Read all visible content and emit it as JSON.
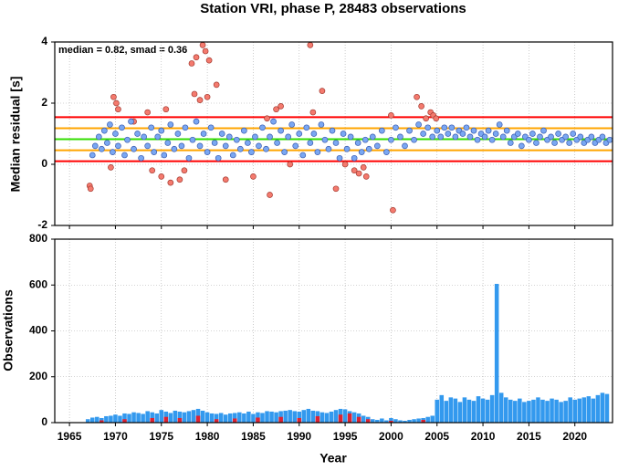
{
  "chart_data": [
    {
      "type": "scatter",
      "title": "Station VRI, phase P, 28483 observations",
      "annotation": "median = 0.82, smad = 0.36",
      "ylabel": "Median residual [s]",
      "xlim": [
        1963.4,
        2024.1
      ],
      "ylim": [
        -2,
        4
      ],
      "xticks": [
        1965,
        1970,
        1975,
        1980,
        1985,
        1990,
        1995,
        2000,
        2005,
        2010,
        2015,
        2020
      ],
      "yticks": [
        -2,
        0,
        2,
        4
      ],
      "grid": true,
      "hlines": [
        {
          "value": 1.54,
          "color": "#ff0000"
        },
        {
          "value": 0.1,
          "color": "#ff0000"
        },
        {
          "value": 1.18,
          "color": "#ffa500"
        },
        {
          "value": 0.46,
          "color": "#ffa500"
        },
        {
          "value": 0.82,
          "color": "#33dd00"
        }
      ],
      "series": [
        {
          "color": "#f47a6e",
          "stroke": "#a33a30",
          "x": [
            1967.2,
            1967.3,
            1969.5,
            1969.8,
            1970.1,
            1970.3,
            1972,
            1973.5,
            1974,
            1975,
            1976,
            1975.5,
            1977,
            1977.5,
            1978.3,
            1978.6,
            1978.8,
            1979.2,
            1979.5,
            1979.8,
            1980,
            1980.2,
            1981,
            1982,
            1985,
            1986.5,
            1986.8,
            1987.5,
            1988,
            1989,
            1991.2,
            1991.5,
            1992.5,
            1994,
            1995,
            1996,
            1996.5,
            1997,
            1997.3,
            2000,
            2000.2,
            2002.8,
            2003.3,
            2003.8,
            2004.3,
            2004.6,
            2004.9
          ],
          "values": [
            -0.7,
            -0.8,
            -0.1,
            2.2,
            2.0,
            1.8,
            1.4,
            1.7,
            -0.2,
            -0.4,
            -0.6,
            1.8,
            -0.5,
            -0.2,
            3.3,
            2.3,
            3.5,
            2.1,
            3.9,
            3.7,
            2.2,
            3.4,
            2.6,
            -0.5,
            -0.4,
            1.5,
            -1.0,
            1.8,
            1.9,
            0.0,
            3.9,
            1.7,
            2.4,
            -0.8,
            0.0,
            -0.2,
            -0.3,
            -0.1,
            -0.4,
            1.6,
            -1.5,
            2.2,
            1.9,
            1.5,
            1.7,
            1.6,
            1.5
          ]
        },
        {
          "color": "#7aa7f2",
          "stroke": "#3a5cb0",
          "x": [
            1967.5,
            1967.8,
            1968.2,
            1968.5,
            1968.8,
            1969.1,
            1969.4,
            1969.7,
            1970.0,
            1970.3,
            1970.7,
            1971.0,
            1971.3,
            1971.7,
            1972.0,
            1972.4,
            1972.8,
            1973.1,
            1973.5,
            1973.9,
            1974.2,
            1974.6,
            1975.0,
            1975.3,
            1975.7,
            1976.0,
            1976.4,
            1976.8,
            1977.2,
            1977.6,
            1978.0,
            1978.4,
            1978.8,
            1979.2,
            1979.6,
            1980.0,
            1980.4,
            1980.8,
            1981.2,
            1981.6,
            1982.0,
            1982.4,
            1982.8,
            1983.2,
            1983.6,
            1984.0,
            1984.4,
            1984.8,
            1985.2,
            1985.6,
            1986.0,
            1986.4,
            1986.8,
            1987.2,
            1987.6,
            1988.0,
            1988.4,
            1988.8,
            1989.2,
            1989.6,
            1990.0,
            1990.4,
            1990.8,
            1991.2,
            1991.6,
            1992.0,
            1992.4,
            1992.8,
            1993.2,
            1993.6,
            1994.0,
            1994.4,
            1994.8,
            1995.2,
            1995.6,
            1996.0,
            1996.4,
            1996.8,
            1997.2,
            1997.6,
            1998.0,
            1998.5,
            1999.0,
            1999.5,
            2000.0,
            2000.5,
            2001.0,
            2001.5,
            2002.0,
            2002.5,
            2003.0,
            2003.5,
            2004.0,
            2004.5,
            2005.0,
            2005.4,
            2005.8,
            2006.2,
            2006.6,
            2007.0,
            2007.4,
            2007.8,
            2008.2,
            2008.6,
            2009.0,
            2009.4,
            2009.8,
            2010.2,
            2010.6,
            2011.0,
            2011.4,
            2011.8,
            2012.2,
            2012.6,
            2013.0,
            2013.4,
            2013.8,
            2014.2,
            2014.6,
            2015.0,
            2015.4,
            2015.8,
            2016.2,
            2016.6,
            2017.0,
            2017.4,
            2017.8,
            2018.2,
            2018.6,
            2019.0,
            2019.4,
            2019.8,
            2020.2,
            2020.6,
            2021.0,
            2021.4,
            2021.8,
            2022.2,
            2022.6,
            2023.0,
            2023.4,
            2023.8
          ],
          "values": [
            0.3,
            0.6,
            0.9,
            0.5,
            1.1,
            0.7,
            1.3,
            0.4,
            1.0,
            0.6,
            1.2,
            0.3,
            0.8,
            1.4,
            0.5,
            1.0,
            0.2,
            0.9,
            0.6,
            1.2,
            0.4,
            0.9,
            1.1,
            0.3,
            0.7,
            1.3,
            0.5,
            1.0,
            0.6,
            1.2,
            0.2,
            0.8,
            1.4,
            0.6,
            1.0,
            0.4,
            1.2,
            0.7,
            0.2,
            1.0,
            0.6,
            0.9,
            0.3,
            0.8,
            0.5,
            1.1,
            0.7,
            0.4,
            0.9,
            0.6,
            1.2,
            0.5,
            0.9,
            1.4,
            0.7,
            1.1,
            0.4,
            0.9,
            1.3,
            0.6,
            1.0,
            0.3,
            1.2,
            0.7,
            1.0,
            0.4,
            1.3,
            0.8,
            0.5,
            1.1,
            0.7,
            0.2,
            1.0,
            0.5,
            0.9,
            0.2,
            0.7,
            0.4,
            0.8,
            0.5,
            0.9,
            0.6,
            1.1,
            0.4,
            0.8,
            1.2,
            0.9,
            0.6,
            1.1,
            0.8,
            1.3,
            1.0,
            1.2,
            0.9,
            1.1,
            0.9,
            1.2,
            1.0,
            1.2,
            0.9,
            1.1,
            1.0,
            1.2,
            0.9,
            1.1,
            0.8,
            1.0,
            0.9,
            1.1,
            0.8,
            1.0,
            1.3,
            0.9,
            1.1,
            0.7,
            0.9,
            1.0,
            0.6,
            0.9,
            0.8,
            1.0,
            0.7,
            0.9,
            1.1,
            0.8,
            0.9,
            0.7,
            1.0,
            0.8,
            0.9,
            0.7,
            1.0,
            0.8,
            0.9,
            0.7,
            0.8,
            0.9,
            0.7,
            0.8,
            0.9,
            0.7,
            0.8
          ]
        }
      ]
    },
    {
      "type": "bar",
      "ylabel": "Observations",
      "xlabel": "Year",
      "xlim": [
        1963.4,
        2024.1
      ],
      "ylim": [
        0,
        800
      ],
      "xticks": [
        1965,
        1970,
        1975,
        1980,
        1985,
        1990,
        1995,
        2000,
        2005,
        2010,
        2015,
        2020
      ],
      "yticks": [
        0,
        200,
        400,
        600,
        800
      ],
      "grid": true,
      "series": [
        {
          "color": "#3399ee",
          "x": [
            1967,
            1967.5,
            1968,
            1968.5,
            1969,
            1969.5,
            1970,
            1970.5,
            1971,
            1971.5,
            1972,
            1972.5,
            1973,
            1973.5,
            1974,
            1974.5,
            1975,
            1975.5,
            1976,
            1976.5,
            1977,
            1977.5,
            1978,
            1978.5,
            1979,
            1979.5,
            1980,
            1980.5,
            1981,
            1981.5,
            1982,
            1982.5,
            1983,
            1983.5,
            1984,
            1984.5,
            1985,
            1985.5,
            1986,
            1986.5,
            1987,
            1987.5,
            1988,
            1988.5,
            1989,
            1989.5,
            1990,
            1990.5,
            1991,
            1991.5,
            1992,
            1992.5,
            1993,
            1993.5,
            1994,
            1994.5,
            1995,
            1995.5,
            1996,
            1996.5,
            1997,
            1997.5,
            1998,
            1998.5,
            1999,
            1999.5,
            2000,
            2000.5,
            2001,
            2001.5,
            2002,
            2002.5,
            2003,
            2003.5,
            2004,
            2004.5,
            2005,
            2005.5,
            2006,
            2006.5,
            2007,
            2007.5,
            2008,
            2008.5,
            2009,
            2009.5,
            2010,
            2010.5,
            2011,
            2011.5,
            2012,
            2012.5,
            2013,
            2013.5,
            2014,
            2014.5,
            2015,
            2015.5,
            2016,
            2016.5,
            2017,
            2017.5,
            2018,
            2018.5,
            2019,
            2019.5,
            2020,
            2020.5,
            2021,
            2021.5,
            2022,
            2022.5,
            2023,
            2023.5
          ],
          "values": [
            15,
            22,
            25,
            20,
            28,
            30,
            35,
            30,
            40,
            38,
            45,
            42,
            38,
            50,
            45,
            40,
            55,
            48,
            42,
            52,
            48,
            45,
            50,
            55,
            60,
            52,
            45,
            40,
            38,
            42,
            35,
            40,
            42,
            45,
            40,
            48,
            38,
            45,
            42,
            50,
            48,
            45,
            50,
            52,
            55,
            50,
            48,
            55,
            60,
            52,
            50,
            45,
            42,
            48,
            55,
            60,
            58,
            50,
            45,
            40,
            30,
            25,
            15,
            12,
            18,
            10,
            20,
            15,
            10,
            8,
            12,
            15,
            18,
            20,
            25,
            30,
            100,
            120,
            95,
            110,
            105,
            90,
            110,
            100,
            95,
            115,
            105,
            100,
            120,
            605,
            130,
            110,
            100,
            95,
            105,
            90,
            95,
            100,
            110,
            100,
            95,
            105,
            100,
            90,
            95,
            110,
            100,
            105,
            110,
            115,
            105,
            120,
            130,
            125
          ]
        },
        {
          "color": "#dd2233",
          "x": [
            1968.5,
            1971,
            1974,
            1975.5,
            1977,
            1979,
            1981,
            1983,
            1985.5,
            1988,
            1990,
            1992,
            1994.5,
            1995.5,
            1996.5,
            1997.5,
            2000,
            2003.5
          ],
          "values": [
            10,
            15,
            20,
            25,
            20,
            30,
            15,
            18,
            22,
            25,
            20,
            28,
            35,
            40,
            25,
            15,
            8,
            12
          ]
        }
      ]
    }
  ]
}
